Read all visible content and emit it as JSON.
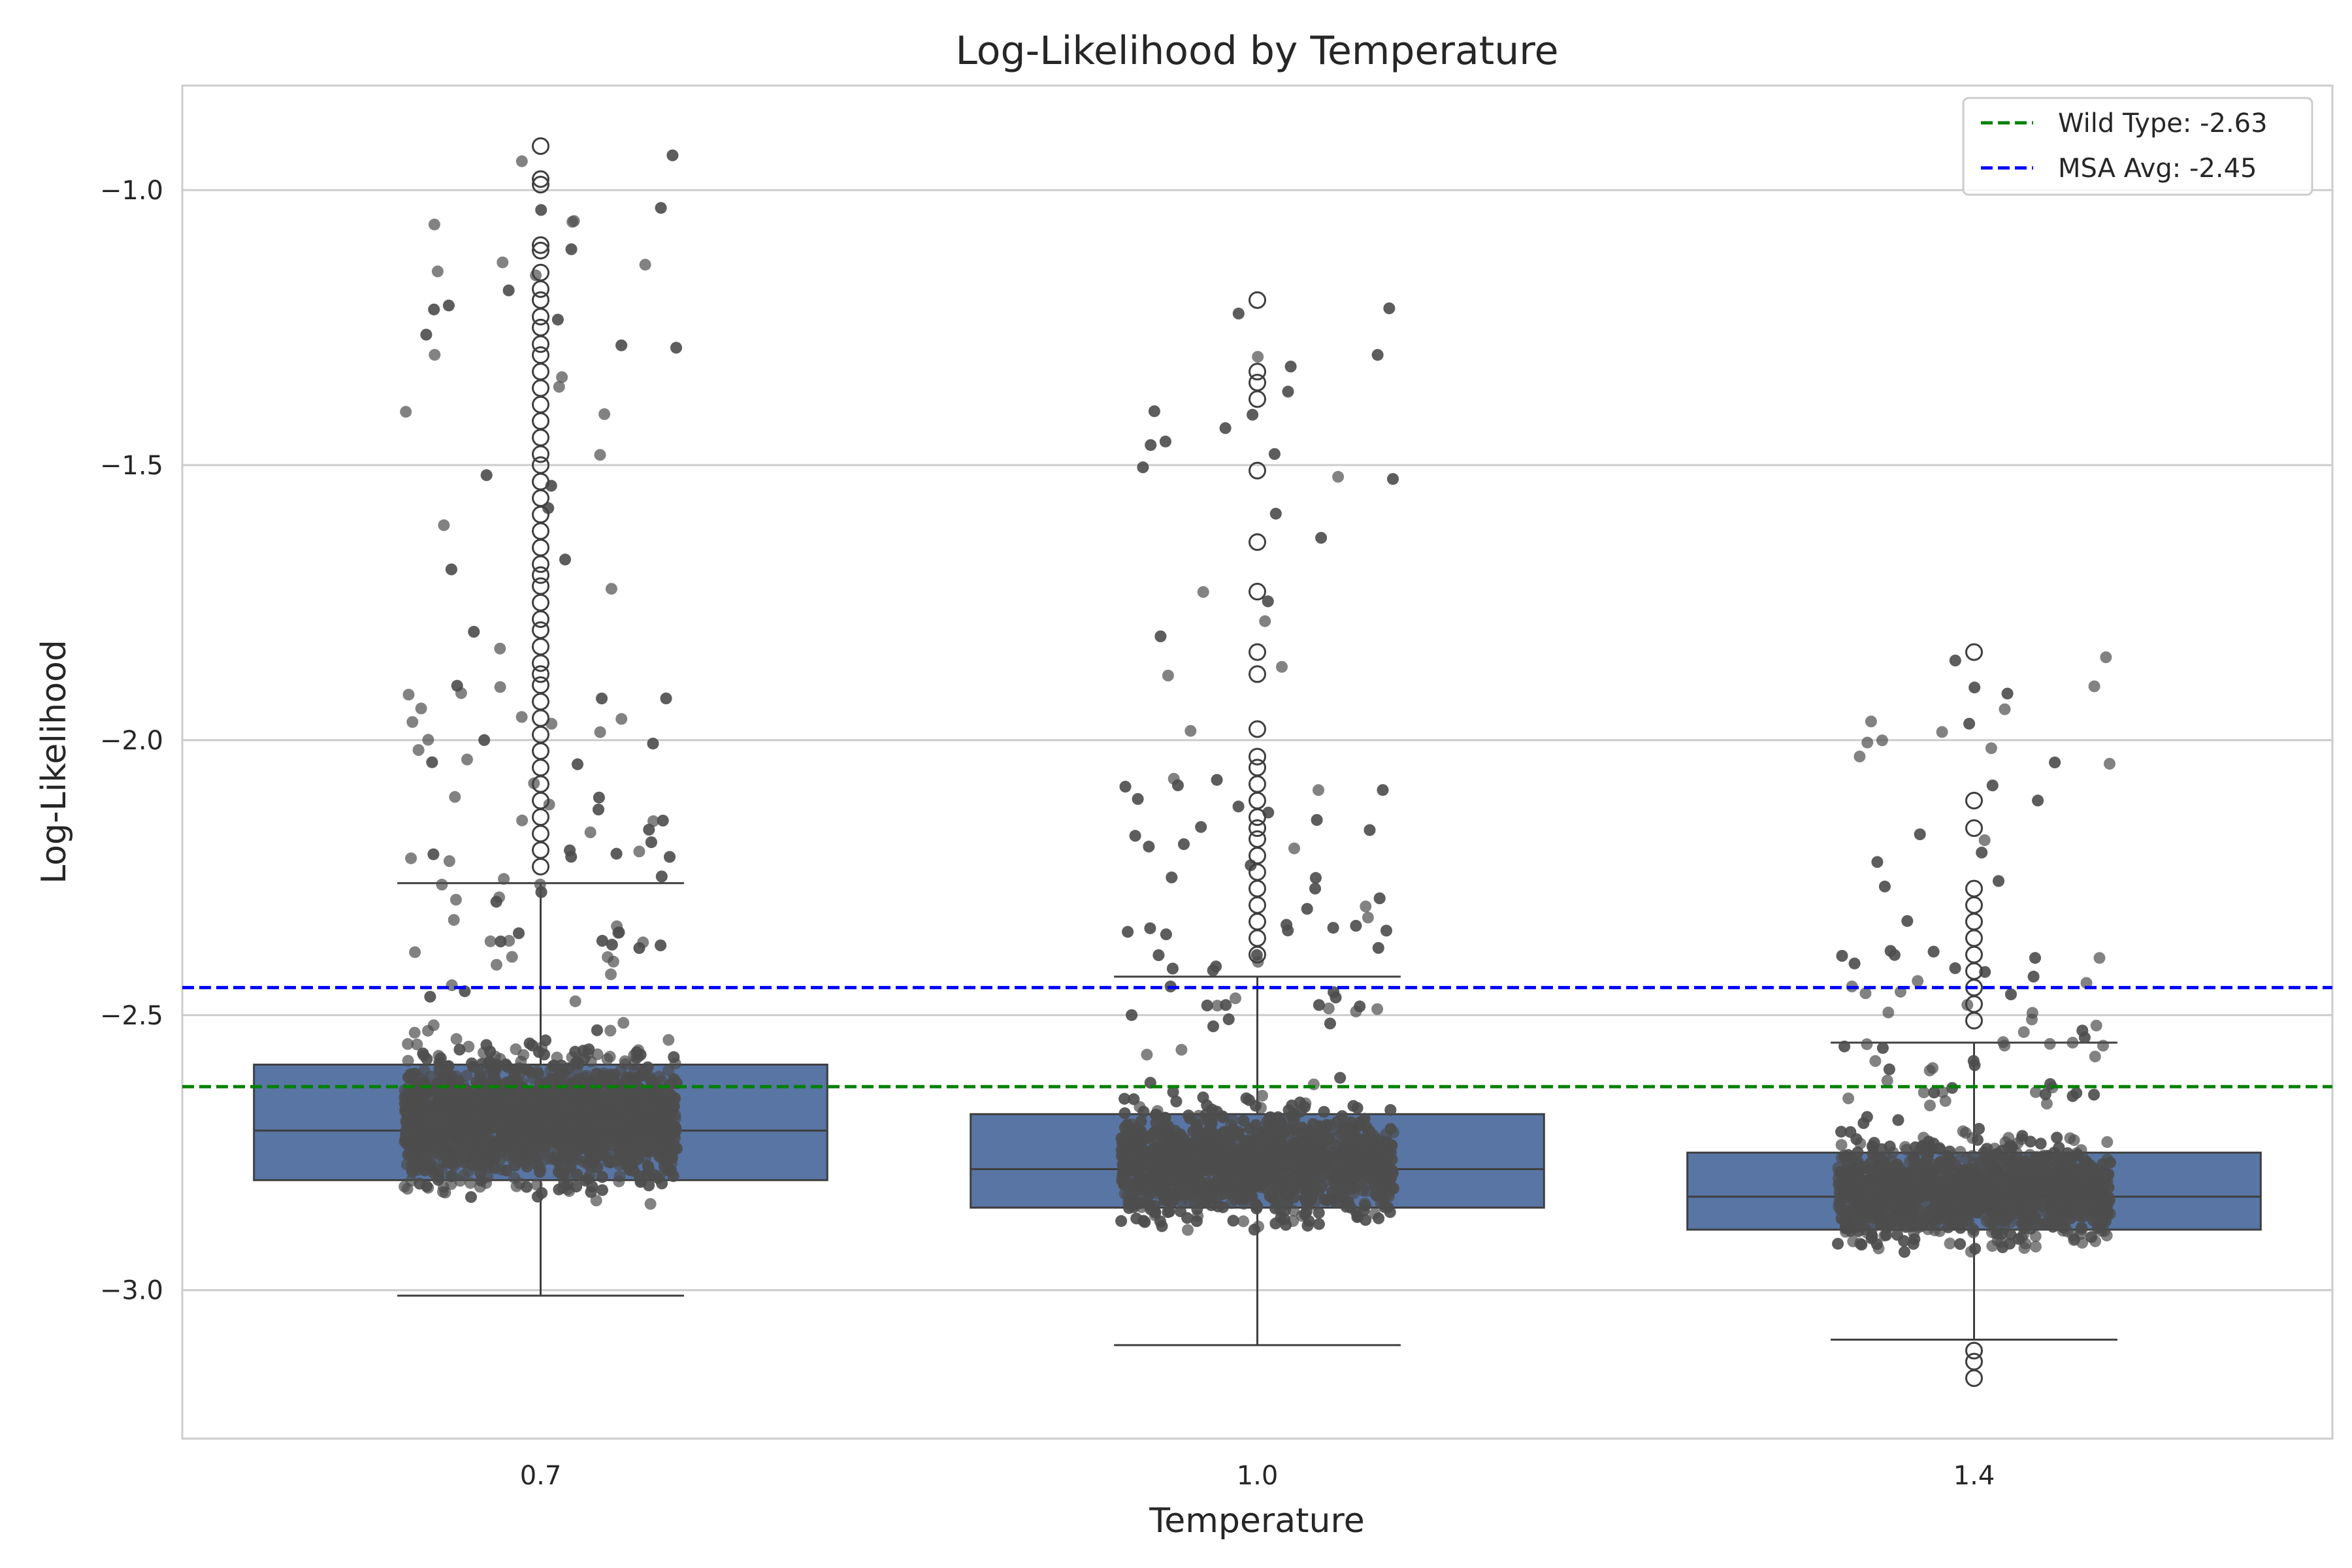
{
  "chart_data": {
    "type": "box",
    "title": "Log-Likelihood by Temperature",
    "xlabel": "Temperature",
    "ylabel": "Log-Likelihood",
    "categories": [
      "0.7",
      "1.0",
      "1.4"
    ],
    "ylim": [
      -3.27,
      -0.81
    ],
    "yticks": [
      -1.0,
      -1.5,
      -2.0,
      -2.5,
      -3.0
    ],
    "ytick_labels": [
      "−1.0",
      "−1.5",
      "−2.0",
      "−2.5",
      "−3.0"
    ],
    "grid": "horizontal",
    "legend_position": "top-right",
    "box_color": "#5875a4",
    "point_color": "#4d4d4d",
    "boxes": [
      {
        "category": "0.7",
        "whisker_low": -3.01,
        "q1": -2.8,
        "median": -2.71,
        "q3": -2.59,
        "whisker_high": -2.26,
        "outliers": [
          -0.92,
          -0.98,
          -0.99,
          -1.1,
          -1.11,
          -1.15,
          -1.18,
          -1.2,
          -1.23,
          -1.25,
          -1.28,
          -1.3,
          -1.33,
          -1.36,
          -1.39,
          -1.42,
          -1.45,
          -1.48,
          -1.5,
          -1.53,
          -1.56,
          -1.59,
          -1.62,
          -1.65,
          -1.68,
          -1.7,
          -1.72,
          -1.75,
          -1.78,
          -1.8,
          -1.83,
          -1.86,
          -1.88,
          -1.9,
          -1.93,
          -1.96,
          -1.99,
          -2.02,
          -2.05,
          -2.08,
          -2.11,
          -2.14,
          -2.17,
          -2.2,
          -2.23
        ],
        "strip": {
          "n": 2600,
          "center": -2.69,
          "spread": 0.14,
          "min": -3.01,
          "max": -0.92
        }
      },
      {
        "category": "1.0",
        "whisker_low": -3.1,
        "q1": -2.85,
        "median": -2.78,
        "q3": -2.68,
        "whisker_high": -2.43,
        "outliers": [
          -1.2,
          -1.33,
          -1.35,
          -1.38,
          -1.51,
          -1.64,
          -1.73,
          -1.84,
          -1.88,
          -1.98,
          -2.03,
          -2.05,
          -2.08,
          -2.11,
          -2.14,
          -2.16,
          -2.18,
          -2.21,
          -2.24,
          -2.27,
          -2.3,
          -2.33,
          -2.36,
          -2.39
        ],
        "strip": {
          "n": 2200,
          "center": -2.77,
          "spread": 0.12,
          "min": -3.1,
          "max": -1.2
        }
      },
      {
        "category": "1.4",
        "whisker_low": -3.09,
        "q1": -2.89,
        "median": -2.83,
        "q3": -2.75,
        "whisker_high": -2.55,
        "outliers": [
          -1.84,
          -2.11,
          -2.16,
          -2.27,
          -2.3,
          -2.33,
          -2.36,
          -2.39,
          -2.42,
          -2.45,
          -2.48,
          -2.51,
          -3.11,
          -3.13,
          -3.16
        ],
        "strip": {
          "n": 1900,
          "center": -2.82,
          "spread": 0.11,
          "min": -3.16,
          "max": -1.84
        }
      }
    ],
    "reference_lines": [
      {
        "name": "Wild Type: -2.63",
        "value": -2.63,
        "color": "#008000",
        "style": "dashed"
      },
      {
        "name": "MSA Avg: -2.45",
        "value": -2.45,
        "color": "#0000ff",
        "style": "dashed"
      }
    ]
  }
}
